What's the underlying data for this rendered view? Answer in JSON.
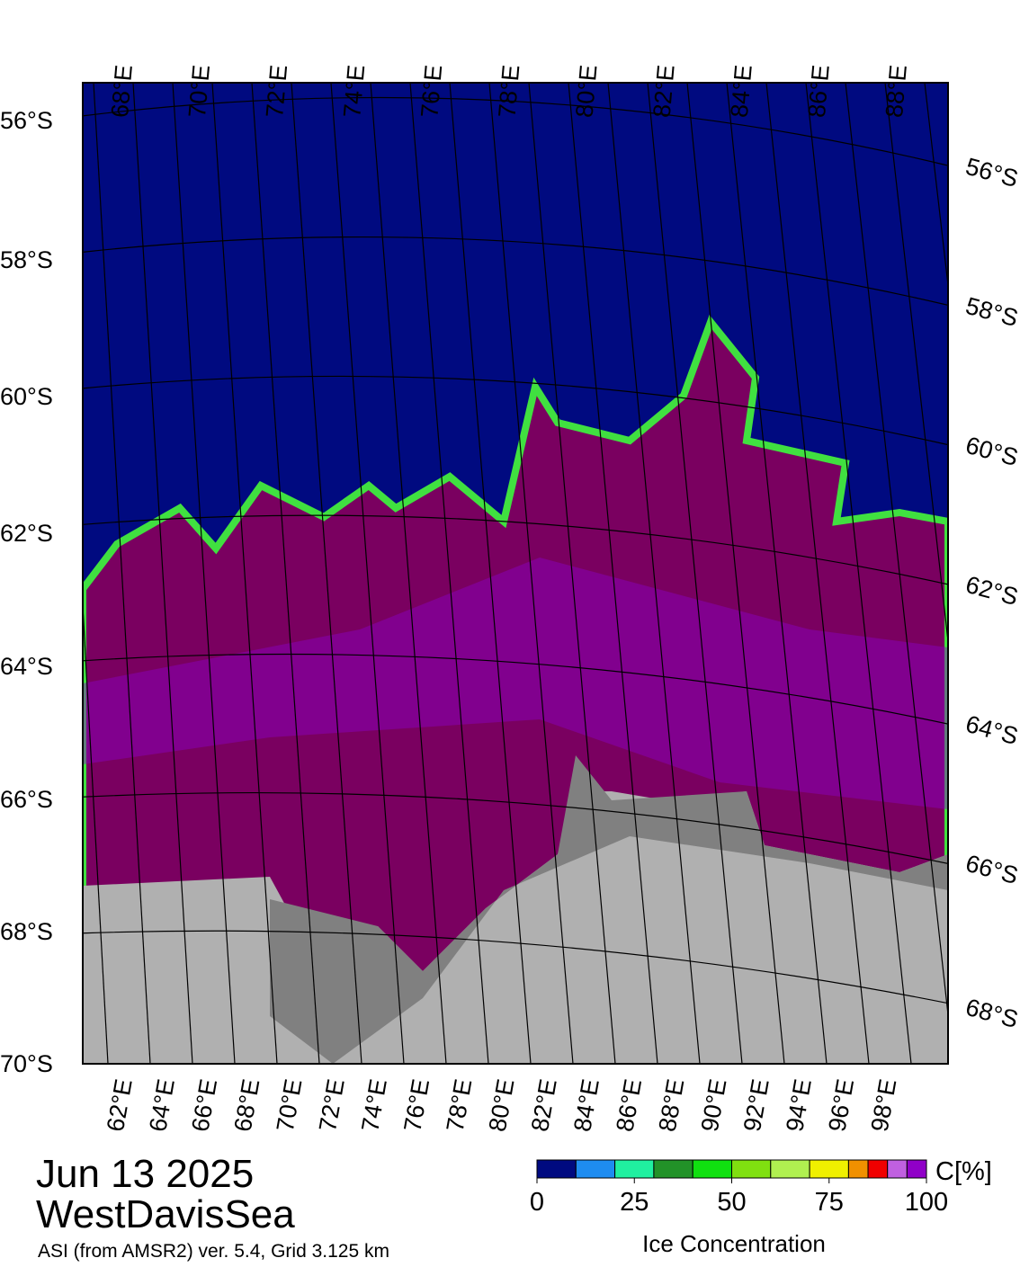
{
  "header": {
    "date": "Jun 13 2025",
    "region": "WestDavisSea",
    "source": "ASI (from AMSR2) ver. 5.4,  Grid 3.125 km"
  },
  "map": {
    "lat_labels_left": [
      "56°S",
      "58°S",
      "60°S",
      "62°S",
      "64°S",
      "66°S",
      "68°S",
      "70°S"
    ],
    "lat_labels_right": [
      "56°S",
      "58°S",
      "60°S",
      "62°S",
      "64°S",
      "66°S",
      "68°S"
    ],
    "lon_labels_top": [
      "68°E",
      "70°E",
      "72°E",
      "74°E",
      "76°E",
      "78°E",
      "80°E",
      "82°E",
      "84°E",
      "86°E",
      "88°E"
    ],
    "lon_labels_bottom": [
      "62°E",
      "64°E",
      "66°E",
      "68°E",
      "70°E",
      "72°E",
      "74°E",
      "76°E",
      "78°E",
      "80°E",
      "82°E",
      "84°E",
      "86°E",
      "88°E",
      "90°E",
      "92°E",
      "94°E",
      "96°E",
      "98°E"
    ]
  },
  "colorbar": {
    "title": "Ice Concentration",
    "unit": "C[%]",
    "range": [
      0,
      100
    ],
    "ticks": [
      0,
      25,
      50,
      75,
      100
    ],
    "bins": [
      0,
      10,
      20,
      30,
      40,
      50,
      60,
      70,
      80,
      85,
      90,
      95,
      100
    ],
    "colors": [
      "#000a80",
      "#1e8cf0",
      "#20f0a0",
      "#229228",
      "#10e010",
      "#80e010",
      "#b0f050",
      "#f0f000",
      "#f09000",
      "#f00000",
      "#c060e0",
      "#9000c8"
    ]
  }
}
